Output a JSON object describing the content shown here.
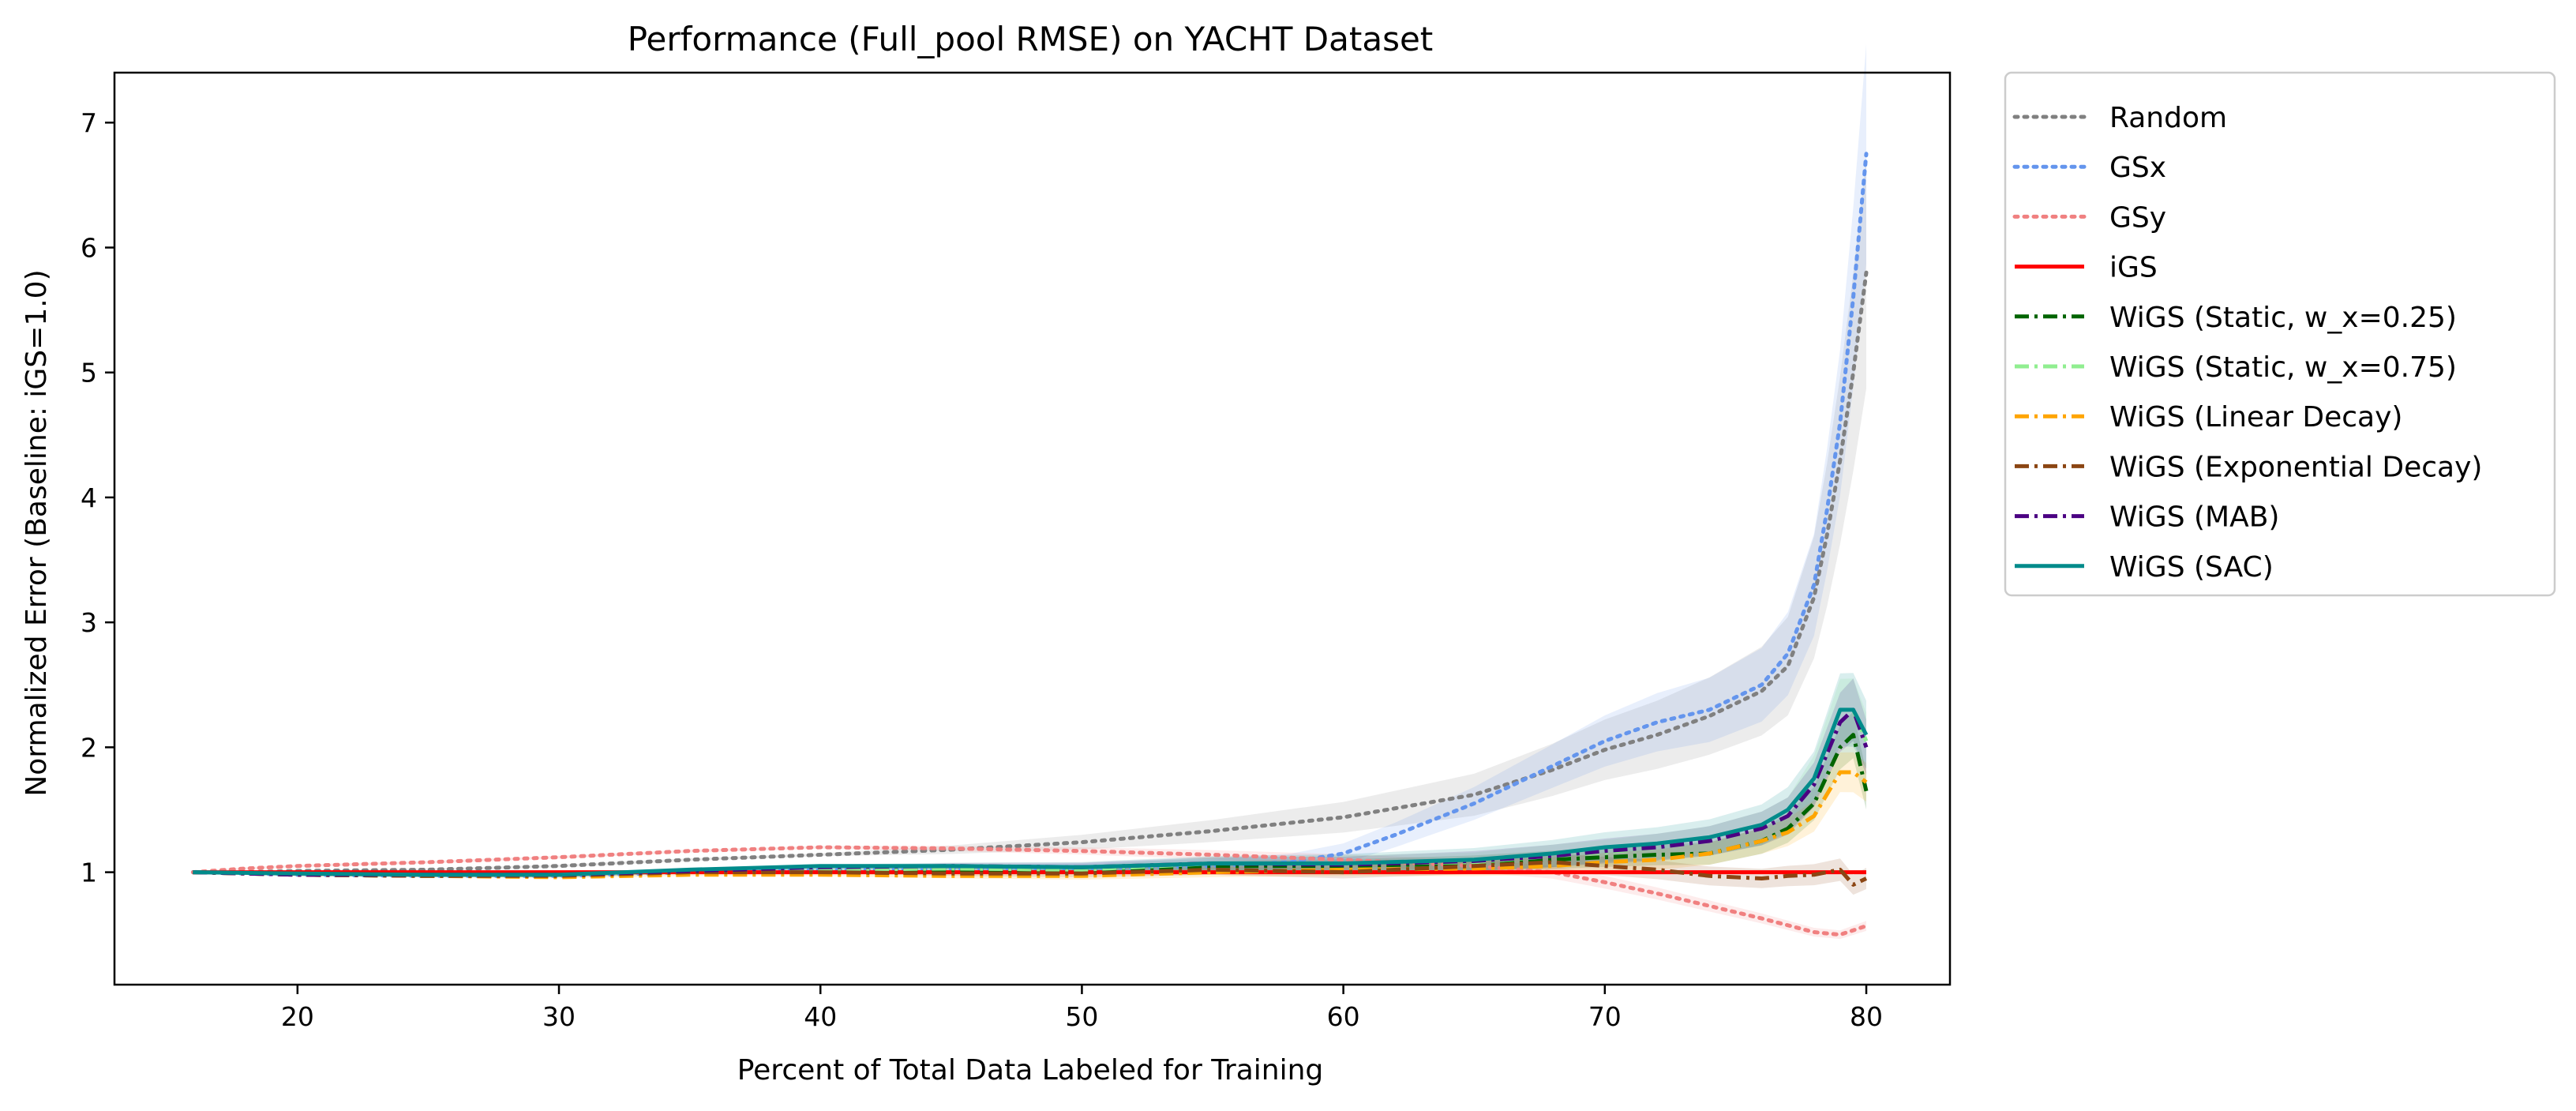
{
  "chart_data": {
    "type": "line",
    "title": "Performance (Full_pool RMSE) on YACHT Dataset",
    "xlabel": "Percent of Total Data Labeled for Training",
    "ylabel": "Normalized Error (Baseline: iGS=1.0)",
    "xlim": [
      13,
      83.2
    ],
    "ylim": [
      0.1,
      7.4
    ],
    "xticks": [
      20,
      30,
      40,
      50,
      60,
      70,
      80
    ],
    "yticks": [
      1,
      2,
      3,
      4,
      5,
      6,
      7
    ],
    "grid": false,
    "legend_position": "outside-right-top",
    "series": [
      {
        "name": "Random",
        "color": "#808080",
        "dash": "dotted",
        "band": 0.15,
        "points": [
          [
            16,
            1.0
          ],
          [
            18,
            1.0
          ],
          [
            20,
            1.01
          ],
          [
            25,
            1.02
          ],
          [
            30,
            1.05
          ],
          [
            35,
            1.1
          ],
          [
            40,
            1.14
          ],
          [
            45,
            1.18
          ],
          [
            50,
            1.24
          ],
          [
            55,
            1.33
          ],
          [
            60,
            1.44
          ],
          [
            65,
            1.62
          ],
          [
            68,
            1.82
          ],
          [
            70,
            1.98
          ],
          [
            72,
            2.1
          ],
          [
            74,
            2.25
          ],
          [
            76,
            2.45
          ],
          [
            77,
            2.65
          ],
          [
            78,
            3.2
          ],
          [
            78.5,
            3.7
          ],
          [
            79,
            4.3
          ],
          [
            79.5,
            5.0
          ],
          [
            80,
            5.8
          ]
        ]
      },
      {
        "name": "GSx",
        "color": "#6495ED",
        "dash": "dotted",
        "band": 0.12,
        "points": [
          [
            16,
            1.0
          ],
          [
            18,
            0.99
          ],
          [
            20,
            0.98
          ],
          [
            25,
            0.97
          ],
          [
            30,
            0.97
          ],
          [
            35,
            1.0
          ],
          [
            40,
            1.02
          ],
          [
            45,
            1.03
          ],
          [
            50,
            1.03
          ],
          [
            55,
            1.05
          ],
          [
            58,
            1.08
          ],
          [
            60,
            1.15
          ],
          [
            62,
            1.3
          ],
          [
            65,
            1.55
          ],
          [
            68,
            1.85
          ],
          [
            70,
            2.05
          ],
          [
            72,
            2.2
          ],
          [
            74,
            2.3
          ],
          [
            76,
            2.5
          ],
          [
            77,
            2.75
          ],
          [
            78,
            3.3
          ],
          [
            78.5,
            3.9
          ],
          [
            79,
            4.6
          ],
          [
            79.5,
            5.6
          ],
          [
            80,
            6.75
          ]
        ]
      },
      {
        "name": "GSy",
        "color": "#F08080",
        "dash": "dotted",
        "band": 0.06,
        "points": [
          [
            16,
            1.0
          ],
          [
            18,
            1.03
          ],
          [
            20,
            1.05
          ],
          [
            25,
            1.08
          ],
          [
            30,
            1.12
          ],
          [
            35,
            1.17
          ],
          [
            40,
            1.2
          ],
          [
            45,
            1.19
          ],
          [
            50,
            1.17
          ],
          [
            55,
            1.14
          ],
          [
            60,
            1.1
          ],
          [
            65,
            1.05
          ],
          [
            68,
            1.0
          ],
          [
            70,
            0.92
          ],
          [
            72,
            0.83
          ],
          [
            74,
            0.73
          ],
          [
            76,
            0.63
          ],
          [
            78,
            0.52
          ],
          [
            79,
            0.5
          ],
          [
            80,
            0.57
          ]
        ]
      },
      {
        "name": "iGS",
        "color": "#FF0000",
        "dash": "solid",
        "band": 0,
        "points": [
          [
            16,
            1.0
          ],
          [
            80,
            1.0
          ]
        ]
      },
      {
        "name": "WiGS (Static, w_x=0.25)",
        "color": "#006400",
        "dash": "dashdot",
        "band": 0.08,
        "points": [
          [
            16,
            1.0
          ],
          [
            20,
            0.98
          ],
          [
            25,
            0.97
          ],
          [
            30,
            0.97
          ],
          [
            35,
            1.0
          ],
          [
            40,
            1.02
          ],
          [
            45,
            1.02
          ],
          [
            50,
            1.02
          ],
          [
            55,
            1.05
          ],
          [
            60,
            1.05
          ],
          [
            65,
            1.07
          ],
          [
            68,
            1.1
          ],
          [
            70,
            1.12
          ],
          [
            72,
            1.14
          ],
          [
            74,
            1.15
          ],
          [
            76,
            1.25
          ],
          [
            77,
            1.35
          ],
          [
            78,
            1.55
          ],
          [
            79,
            2.0
          ],
          [
            79.5,
            2.1
          ],
          [
            80,
            1.65
          ]
        ]
      },
      {
        "name": "WiGS (Static, w_x=0.75)",
        "color": "#90EE90",
        "dash": "dashdot",
        "band": 0.1,
        "points": [
          [
            16,
            1.0
          ],
          [
            20,
            0.98
          ],
          [
            25,
            0.97
          ],
          [
            30,
            0.97
          ],
          [
            35,
            1.0
          ],
          [
            40,
            1.02
          ],
          [
            45,
            1.03
          ],
          [
            50,
            1.02
          ],
          [
            55,
            1.07
          ],
          [
            60,
            1.07
          ],
          [
            65,
            1.08
          ],
          [
            68,
            1.13
          ],
          [
            70,
            1.16
          ],
          [
            72,
            1.2
          ],
          [
            74,
            1.25
          ],
          [
            76,
            1.35
          ],
          [
            77,
            1.45
          ],
          [
            78,
            1.75
          ],
          [
            79,
            2.3
          ],
          [
            79.5,
            2.3
          ],
          [
            80,
            2.05
          ]
        ]
      },
      {
        "name": "WiGS (Linear Decay)",
        "color": "#FFA500",
        "dash": "dashdot",
        "band": 0.08,
        "points": [
          [
            16,
            1.0
          ],
          [
            20,
            0.98
          ],
          [
            25,
            0.97
          ],
          [
            30,
            0.96
          ],
          [
            35,
            0.98
          ],
          [
            40,
            0.98
          ],
          [
            45,
            0.97
          ],
          [
            50,
            0.97
          ],
          [
            55,
            1.0
          ],
          [
            60,
            1.02
          ],
          [
            65,
            1.03
          ],
          [
            68,
            1.05
          ],
          [
            70,
            1.08
          ],
          [
            72,
            1.1
          ],
          [
            74,
            1.15
          ],
          [
            76,
            1.25
          ],
          [
            77,
            1.32
          ],
          [
            78,
            1.45
          ],
          [
            79,
            1.8
          ],
          [
            79.5,
            1.8
          ],
          [
            80,
            1.72
          ]
        ]
      },
      {
        "name": "WiGS (Exponential Decay)",
        "color": "#8B4513",
        "dash": "dashdot",
        "band": 0.08,
        "points": [
          [
            16,
            1.0
          ],
          [
            20,
            0.98
          ],
          [
            25,
            0.97
          ],
          [
            30,
            0.97
          ],
          [
            35,
            1.0
          ],
          [
            40,
            1.0
          ],
          [
            45,
            0.99
          ],
          [
            50,
            0.99
          ],
          [
            55,
            1.02
          ],
          [
            60,
            1.0
          ],
          [
            65,
            1.05
          ],
          [
            68,
            1.08
          ],
          [
            70,
            1.05
          ],
          [
            72,
            1.02
          ],
          [
            74,
            0.97
          ],
          [
            76,
            0.95
          ],
          [
            77,
            0.97
          ],
          [
            78,
            0.98
          ],
          [
            79,
            1.02
          ],
          [
            79.5,
            0.9
          ],
          [
            80,
            0.95
          ]
        ]
      },
      {
        "name": "WiGS (MAB)",
        "color": "#4B0082",
        "dash": "dashdot",
        "band": 0.1,
        "points": [
          [
            16,
            1.0
          ],
          [
            20,
            0.98
          ],
          [
            25,
            0.98
          ],
          [
            30,
            0.98
          ],
          [
            35,
            1.01
          ],
          [
            40,
            1.04
          ],
          [
            45,
            1.05
          ],
          [
            50,
            1.04
          ],
          [
            55,
            1.07
          ],
          [
            60,
            1.06
          ],
          [
            65,
            1.09
          ],
          [
            68,
            1.13
          ],
          [
            70,
            1.17
          ],
          [
            72,
            1.2
          ],
          [
            74,
            1.25
          ],
          [
            76,
            1.35
          ],
          [
            77,
            1.45
          ],
          [
            78,
            1.7
          ],
          [
            79,
            2.2
          ],
          [
            79.5,
            2.3
          ],
          [
            80,
            2.0
          ]
        ]
      },
      {
        "name": "WiGS (SAC)",
        "color": "#008B8B",
        "dash": "solid",
        "band": 0.12,
        "points": [
          [
            16,
            1.0
          ],
          [
            20,
            0.99
          ],
          [
            25,
            0.98
          ],
          [
            30,
            0.98
          ],
          [
            35,
            1.02
          ],
          [
            40,
            1.05
          ],
          [
            45,
            1.05
          ],
          [
            50,
            1.04
          ],
          [
            55,
            1.07
          ],
          [
            60,
            1.07
          ],
          [
            65,
            1.1
          ],
          [
            68,
            1.15
          ],
          [
            70,
            1.2
          ],
          [
            72,
            1.23
          ],
          [
            74,
            1.28
          ],
          [
            76,
            1.38
          ],
          [
            77,
            1.5
          ],
          [
            78,
            1.75
          ],
          [
            79,
            2.3
          ],
          [
            79.5,
            2.3
          ],
          [
            80,
            2.1
          ]
        ]
      }
    ]
  }
}
